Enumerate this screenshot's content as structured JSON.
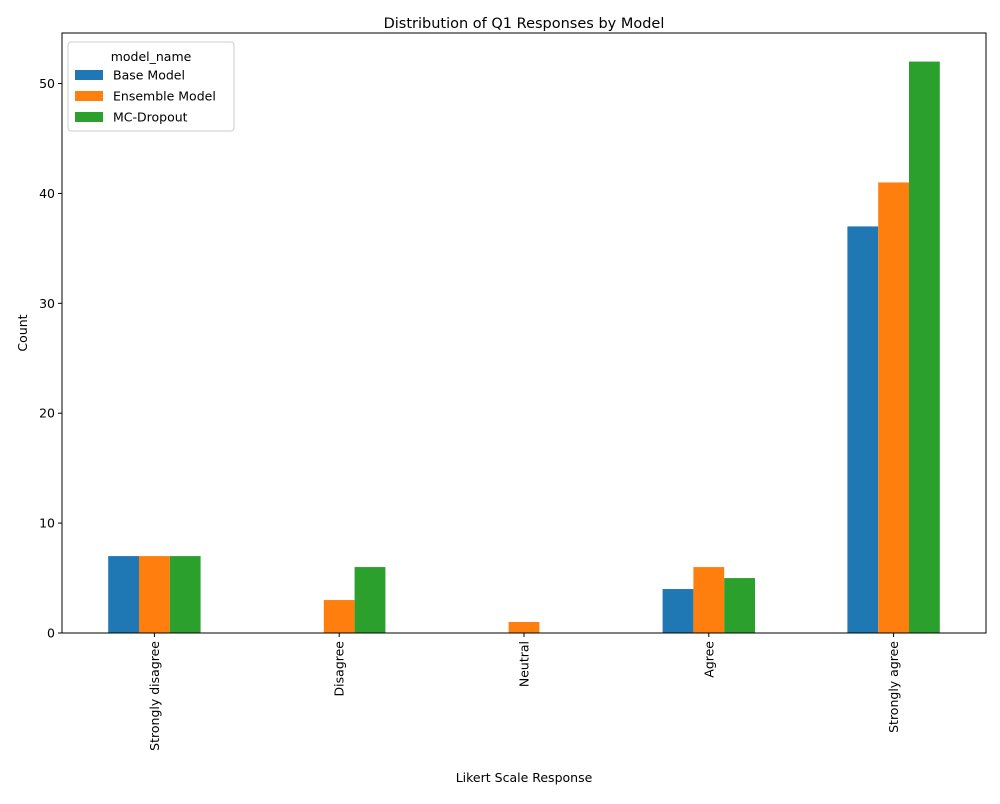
{
  "chart_data": {
    "type": "bar",
    "title": "Distribution of Q1 Responses by Model",
    "xlabel": "Likert Scale Response",
    "ylabel": "Count",
    "categories": [
      "Strongly disagree",
      "Disagree",
      "Neutral",
      "Agree",
      "Strongly agree"
    ],
    "series": [
      {
        "name": "Base Model",
        "color": "#1f77b4",
        "values": [
          7,
          0,
          0,
          4,
          37
        ]
      },
      {
        "name": "Ensemble Model",
        "color": "#ff7f0e",
        "values": [
          7,
          3,
          1,
          6,
          41
        ]
      },
      {
        "name": "MC-Dropout",
        "color": "#2ca02c",
        "values": [
          7,
          6,
          0,
          5,
          52
        ]
      }
    ],
    "ylim": [
      0,
      54.6
    ],
    "yticks": [
      0,
      10,
      20,
      30,
      40,
      50
    ],
    "grid": false,
    "legend": {
      "title": "model_name",
      "placement": "top-left"
    }
  }
}
